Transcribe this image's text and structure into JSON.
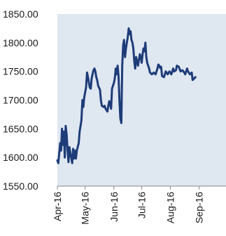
{
  "chart_data": {
    "type": "line",
    "title": "",
    "xlabel": "",
    "ylabel": "",
    "ylim": [
      1550,
      1850
    ],
    "yticks": [
      "1850.00",
      "1800.00",
      "1750.00",
      "1700.00",
      "1650.00",
      "1600.00",
      "1550.00"
    ],
    "ytick_values": [
      1850,
      1800,
      1750,
      1700,
      1650,
      1600,
      1550
    ],
    "xticks": [
      {
        "label": "Apr-16",
        "x": "2016-04-01"
      },
      {
        "label": "May-16",
        "x": "2016-05-01"
      },
      {
        "label": "Jun-16",
        "x": "2016-06-01"
      },
      {
        "label": "Jul-16",
        "x": "2016-07-01"
      },
      {
        "label": "Aug-16",
        "x": "2016-08-01"
      },
      {
        "label": "Sep-16",
        "x": "2016-09-01"
      }
    ],
    "xlim": [
      "2016-04-01",
      "2016-09-30"
    ],
    "grid": false,
    "legend": "none",
    "colors": {
      "line": "#1e3c78",
      "plot_background": "#dfe7f1",
      "axis": "#888888"
    },
    "series": [
      {
        "points": [
          [
            "2016-04-01",
            1595
          ],
          [
            "2016-04-02",
            1590
          ],
          [
            "2016-04-04",
            1625
          ],
          [
            "2016-04-05",
            1612
          ],
          [
            "2016-04-06",
            1650
          ],
          [
            "2016-04-07",
            1622
          ],
          [
            "2016-04-08",
            1645
          ],
          [
            "2016-04-09",
            1600
          ],
          [
            "2016-04-10",
            1655
          ],
          [
            "2016-04-11",
            1640
          ],
          [
            "2016-04-12",
            1612
          ],
          [
            "2016-04-13",
            1592
          ],
          [
            "2016-04-14",
            1618
          ],
          [
            "2016-04-15",
            1608
          ],
          [
            "2016-04-17",
            1590
          ],
          [
            "2016-04-18",
            1615
          ],
          [
            "2016-04-19",
            1598
          ],
          [
            "2016-04-20",
            1612
          ],
          [
            "2016-04-21",
            1598
          ],
          [
            "2016-04-22",
            1612
          ],
          [
            "2016-04-24",
            1625
          ],
          [
            "2016-04-25",
            1645
          ],
          [
            "2016-04-27",
            1665
          ],
          [
            "2016-04-28",
            1700
          ],
          [
            "2016-04-29",
            1688
          ],
          [
            "2016-04-30",
            1705
          ],
          [
            "2016-05-02",
            1722
          ],
          [
            "2016-05-03",
            1748
          ],
          [
            "2016-05-04",
            1740
          ],
          [
            "2016-05-06",
            1722
          ],
          [
            "2016-05-07",
            1720
          ],
          [
            "2016-05-08",
            1738
          ],
          [
            "2016-05-10",
            1752
          ],
          [
            "2016-05-11",
            1755
          ],
          [
            "2016-05-12",
            1750
          ],
          [
            "2016-05-13",
            1740
          ],
          [
            "2016-05-14",
            1735
          ],
          [
            "2016-05-15",
            1725
          ],
          [
            "2016-05-17",
            1718
          ],
          [
            "2016-05-18",
            1700
          ],
          [
            "2016-05-19",
            1690
          ],
          [
            "2016-05-21",
            1688
          ],
          [
            "2016-05-22",
            1690
          ],
          [
            "2016-05-23",
            1685
          ],
          [
            "2016-05-25",
            1680
          ],
          [
            "2016-05-26",
            1690
          ],
          [
            "2016-05-27",
            1698
          ],
          [
            "2016-05-28",
            1692
          ],
          [
            "2016-05-29",
            1685
          ],
          [
            "2016-05-30",
            1720
          ],
          [
            "2016-06-01",
            1730
          ],
          [
            "2016-06-02",
            1738
          ],
          [
            "2016-06-03",
            1755
          ],
          [
            "2016-06-04",
            1745
          ],
          [
            "2016-06-05",
            1760
          ],
          [
            "2016-06-06",
            1742
          ],
          [
            "2016-06-07",
            1700
          ],
          [
            "2016-06-08",
            1668
          ],
          [
            "2016-06-09",
            1660
          ],
          [
            "2016-06-10",
            1760
          ],
          [
            "2016-06-11",
            1795
          ],
          [
            "2016-06-12",
            1805
          ],
          [
            "2016-06-13",
            1775
          ],
          [
            "2016-06-14",
            1790
          ],
          [
            "2016-06-15",
            1800
          ],
          [
            "2016-06-16",
            1810
          ],
          [
            "2016-06-17",
            1825
          ],
          [
            "2016-06-18",
            1815
          ],
          [
            "2016-06-19",
            1820
          ],
          [
            "2016-06-20",
            1805
          ],
          [
            "2016-06-21",
            1800
          ],
          [
            "2016-06-22",
            1790
          ],
          [
            "2016-06-23",
            1768
          ],
          [
            "2016-06-24",
            1755
          ],
          [
            "2016-06-25",
            1775
          ],
          [
            "2016-06-27",
            1760
          ],
          [
            "2016-06-28",
            1770
          ],
          [
            "2016-06-29",
            1780
          ],
          [
            "2016-06-30",
            1775
          ],
          [
            "2016-07-01",
            1765
          ],
          [
            "2016-07-02",
            1780
          ],
          [
            "2016-07-03",
            1790
          ],
          [
            "2016-07-04",
            1785
          ],
          [
            "2016-07-05",
            1800
          ],
          [
            "2016-07-06",
            1775
          ],
          [
            "2016-07-07",
            1765
          ],
          [
            "2016-07-08",
            1760
          ],
          [
            "2016-07-09",
            1755
          ],
          [
            "2016-07-10",
            1748
          ],
          [
            "2016-07-12",
            1745
          ],
          [
            "2016-07-14",
            1748
          ],
          [
            "2016-07-16",
            1745
          ],
          [
            "2016-07-18",
            1755
          ],
          [
            "2016-07-19",
            1762
          ],
          [
            "2016-07-20",
            1760
          ],
          [
            "2016-07-21",
            1756
          ],
          [
            "2016-07-22",
            1758
          ],
          [
            "2016-07-23",
            1742
          ],
          [
            "2016-07-25",
            1740
          ],
          [
            "2016-07-27",
            1750
          ],
          [
            "2016-07-29",
            1745
          ],
          [
            "2016-07-31",
            1750
          ],
          [
            "2016-08-02",
            1745
          ],
          [
            "2016-08-04",
            1755
          ],
          [
            "2016-08-05",
            1750
          ],
          [
            "2016-08-07",
            1752
          ],
          [
            "2016-08-08",
            1760
          ],
          [
            "2016-08-10",
            1758
          ],
          [
            "2016-08-12",
            1750
          ],
          [
            "2016-08-14",
            1752
          ],
          [
            "2016-08-16",
            1748
          ],
          [
            "2016-08-17",
            1745
          ],
          [
            "2016-08-19",
            1755
          ],
          [
            "2016-08-20",
            1750
          ],
          [
            "2016-08-22",
            1745
          ],
          [
            "2016-08-24",
            1748
          ],
          [
            "2016-08-25",
            1735
          ],
          [
            "2016-08-28",
            1740
          ]
        ]
      }
    ]
  }
}
